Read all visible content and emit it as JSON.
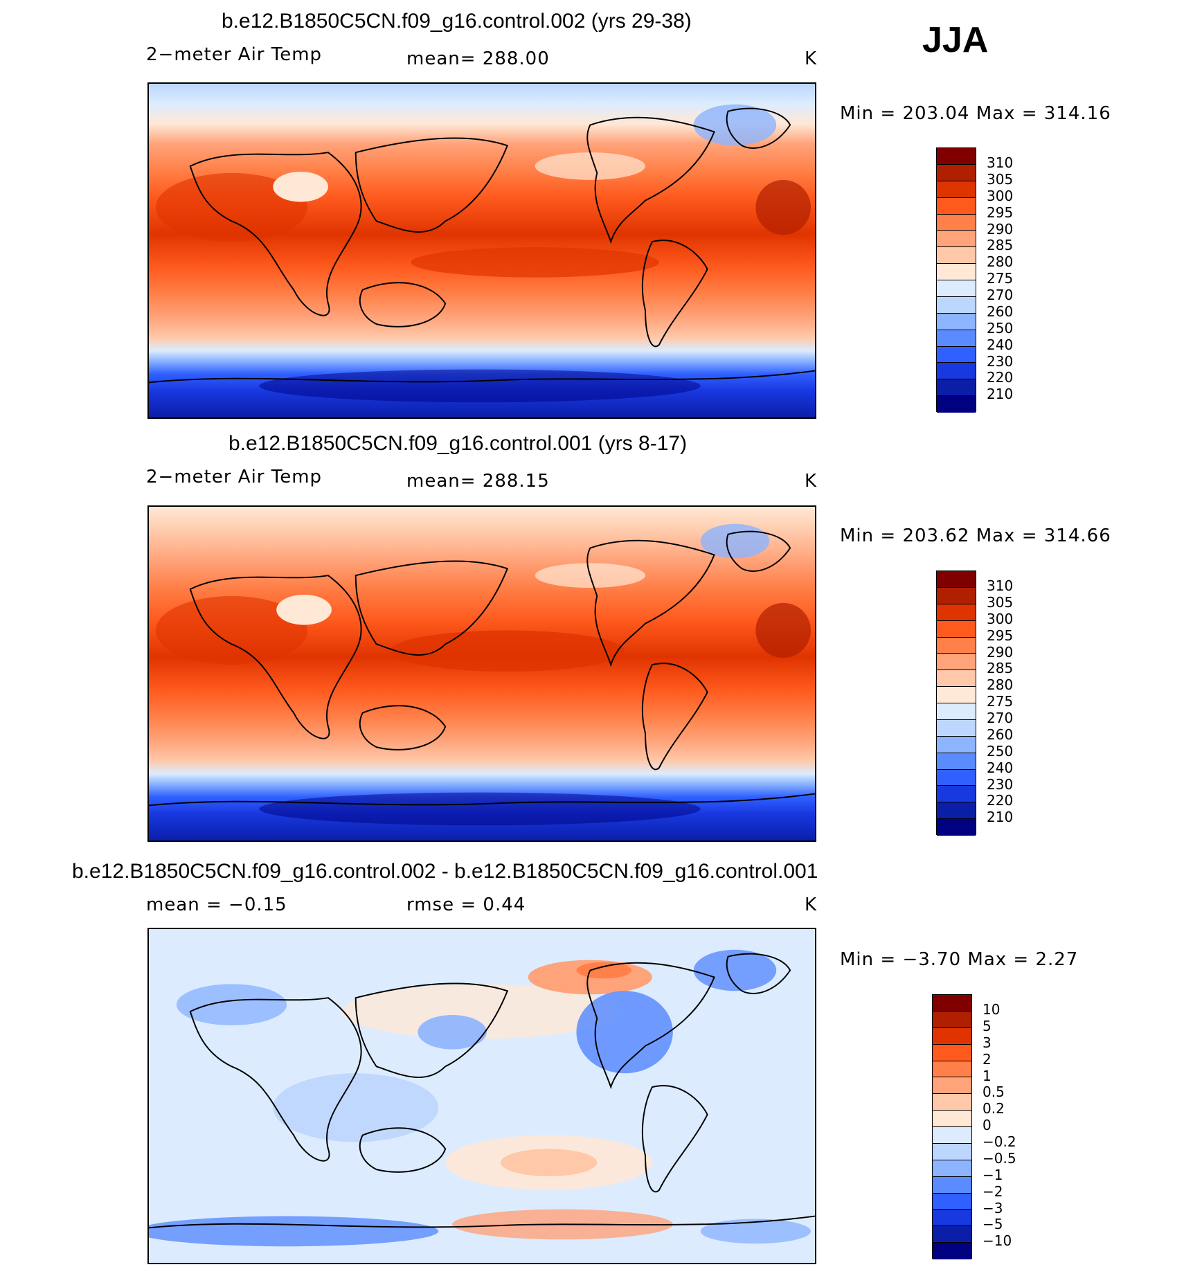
{
  "season": "JJA",
  "panels": [
    {
      "title": "b.e12.B1850C5CN.f09_g16.control.002 (yrs 29-38)",
      "left_label": "2−meter Air Temp",
      "center_label": "mean=  288.00",
      "units": "K",
      "minmax": "Min  =  203.04  Max  =  314.16",
      "type": "abs"
    },
    {
      "title": "b.e12.B1850C5CN.f09_g16.control.001 (yrs 8-17)",
      "left_label": "2−meter Air Temp",
      "center_label": "mean=  288.15",
      "units": "K",
      "minmax": "Min  =  203.62  Max  =  314.66",
      "type": "abs"
    },
    {
      "title": "b.e12.B1850C5CN.f09_g16.control.002 - b.e12.B1850C5CN.f09_g16.control.001",
      "left_label": "mean  =   −0.15",
      "center_label": "rmse  =     0.44",
      "units": "K",
      "minmax": "Min  =    −3.70  Max  =     2.27",
      "type": "diff"
    }
  ],
  "colorbars": {
    "abs": {
      "labels": [
        "310",
        "305",
        "300",
        "295",
        "290",
        "285",
        "280",
        "275",
        "270",
        "260",
        "250",
        "240",
        "230",
        "220",
        "210"
      ],
      "colors": [
        "#800000",
        "#b02000",
        "#e03400",
        "#ff5a1e",
        "#ff8048",
        "#ffa37a",
        "#ffc8a8",
        "#ffe8d6",
        "#dcecfe",
        "#bcd6fe",
        "#8cb4ff",
        "#5a8cff",
        "#3060ff",
        "#1838e0",
        "#0a1ea8",
        "#000080"
      ]
    },
    "diff": {
      "labels": [
        "10",
        "5",
        "3",
        "2",
        "1",
        "0.5",
        "0.2",
        "0",
        "−0.2",
        "−0.5",
        "−1",
        "−2",
        "−3",
        "−5",
        "−10"
      ],
      "colors": [
        "#800000",
        "#b02000",
        "#e03400",
        "#ff5a1e",
        "#ff8048",
        "#ffa37a",
        "#ffc8a8",
        "#ffe8d6",
        "#dcecfe",
        "#bcd6fe",
        "#8cb4ff",
        "#5a8cff",
        "#3060ff",
        "#1838e0",
        "#0a1ea8",
        "#000080"
      ]
    }
  }
}
